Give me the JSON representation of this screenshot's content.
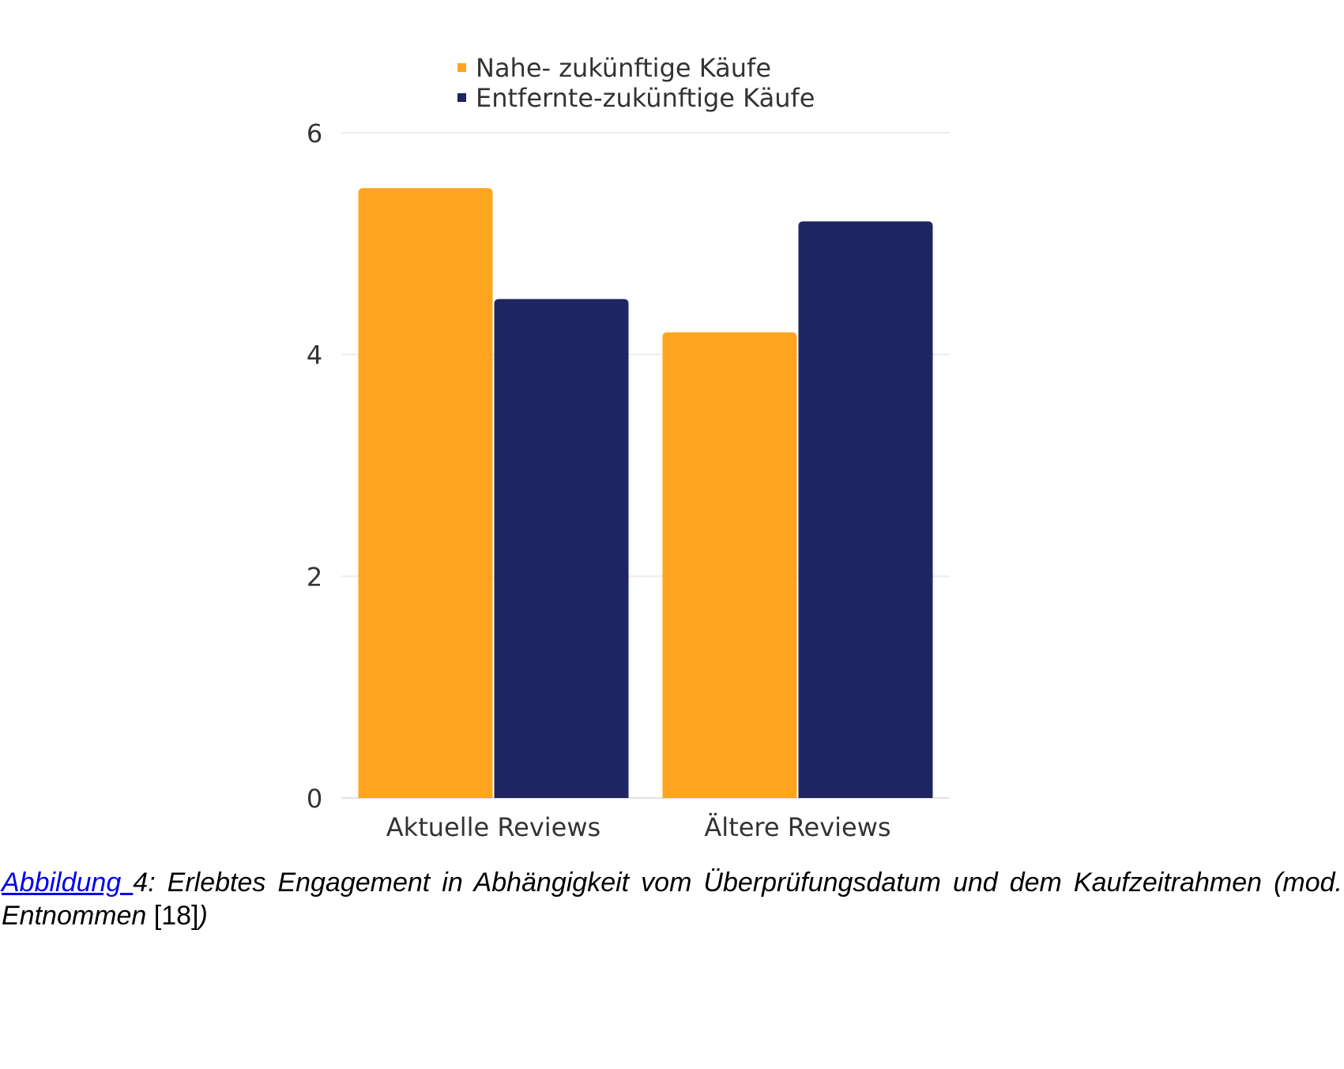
{
  "chart_data": {
    "type": "bar",
    "categories": [
      "Aktuelle Reviews",
      "Ältere Reviews"
    ],
    "series": [
      {
        "name": "Nahe- zukünftige Käufe",
        "values": [
          5.5,
          4.2
        ],
        "color": "#FFA41F"
      },
      {
        "name": "Entfernte-zukünftige Käufe",
        "values": [
          4.5,
          5.2
        ],
        "color": "#1E2560"
      }
    ],
    "ylim": [
      0,
      6
    ],
    "yticks": [
      "0",
      "2",
      "4",
      "6"
    ],
    "grid": true,
    "legend_position": "top",
    "title": "",
    "xlabel": "",
    "ylabel": ""
  },
  "caption": {
    "link_text": "Abbildung ",
    "number_text": "4: Erlebtes Engagement in Abhängigkeit vom Überprüfungsdatum und dem Kaufzeitrahmen (mod. Entnommen ",
    "ref_text": "[18]",
    "close_text": ")"
  }
}
